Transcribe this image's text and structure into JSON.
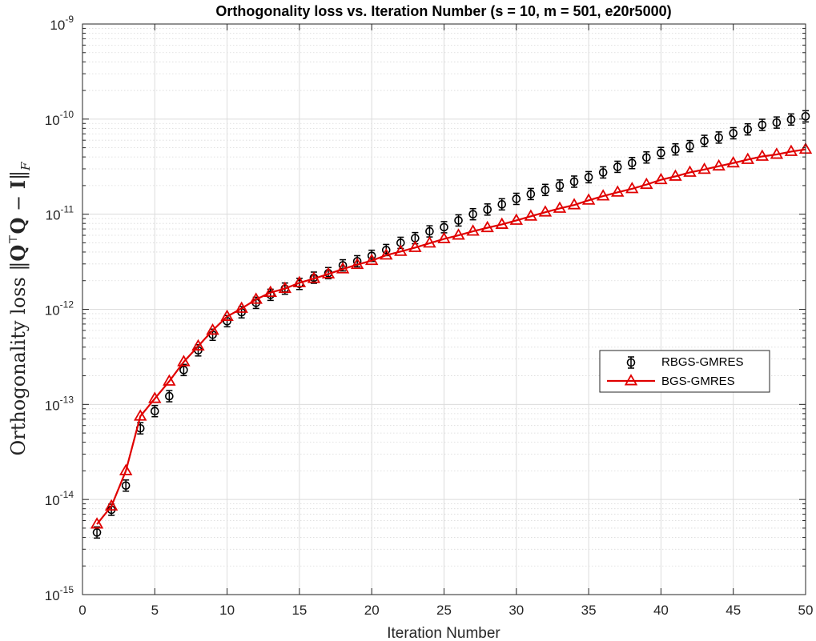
{
  "chart_data": {
    "type": "line",
    "title": "Orthogonality loss vs. Iteration Number (s = 10, m = 501, e20r5000)",
    "xlabel": "Iteration Number",
    "ylabel": "Orthogonality loss ‖QᵀQ − I‖F",
    "xlim": [
      0,
      50
    ],
    "ylim": [
      1e-15,
      1e-09
    ],
    "yscale": "log",
    "grid": true,
    "legend_position": "center-right",
    "x_ticks": [
      0,
      5,
      10,
      15,
      20,
      25,
      30,
      35,
      40,
      45,
      50
    ],
    "y_ticks": [
      {
        "base": "10",
        "exp": "-15",
        "value": 1e-15
      },
      {
        "base": "10",
        "exp": "-14",
        "value": 1e-14
      },
      {
        "base": "10",
        "exp": "-13",
        "value": 1e-13
      },
      {
        "base": "10",
        "exp": "-12",
        "value": 1e-12
      },
      {
        "base": "10",
        "exp": "-11",
        "value": 1e-11
      },
      {
        "base": "10",
        "exp": "-10",
        "value": 1e-10
      },
      {
        "base": "10",
        "exp": "-9",
        "value": 1e-09
      }
    ],
    "x": [
      1,
      2,
      3,
      4,
      5,
      6,
      7,
      8,
      9,
      10,
      11,
      12,
      13,
      14,
      15,
      16,
      17,
      18,
      19,
      20,
      21,
      22,
      23,
      24,
      25,
      26,
      27,
      28,
      29,
      30,
      31,
      32,
      33,
      34,
      35,
      36,
      37,
      38,
      39,
      40,
      41,
      42,
      43,
      44,
      45,
      46,
      47,
      48,
      49,
      50
    ],
    "series": [
      {
        "name": "RBGS-GMRES",
        "color": "#000000",
        "marker": "circle-errorbar",
        "line": false,
        "values": [
          4.5e-15,
          7.8e-15,
          1.4e-14,
          5.6e-14,
          8.5e-14,
          1.22e-13,
          2.3e-13,
          3.7e-13,
          5.4e-13,
          7.5e-13,
          9.3e-13,
          1.17e-12,
          1.42e-12,
          1.65e-12,
          1.85e-12,
          2.15e-12,
          2.4e-12,
          2.9e-12,
          3.2e-12,
          3.65e-12,
          4.2e-12,
          5e-12,
          5.6e-12,
          6.6e-12,
          7.3e-12,
          8.6e-12,
          1e-11,
          1.12e-11,
          1.27e-11,
          1.45e-11,
          1.63e-11,
          1.8e-11,
          2e-11,
          2.2e-11,
          2.45e-11,
          2.75e-11,
          3.15e-11,
          3.45e-11,
          3.95e-11,
          4.4e-11,
          4.8e-11,
          5.2e-11,
          5.9e-11,
          6.4e-11,
          7.1e-11,
          7.8e-11,
          8.7e-11,
          9.2e-11,
          9.9e-11,
          1.07e-10
        ]
      },
      {
        "name": "BGS-GMRES",
        "color": "#e00000",
        "marker": "triangle",
        "line": true,
        "values": [
          5.5e-15,
          8.5e-15,
          2e-14,
          7.5e-14,
          1.15e-13,
          1.75e-13,
          2.8e-13,
          4.1e-13,
          6e-13,
          8.4e-13,
          1.02e-12,
          1.27e-12,
          1.5e-12,
          1.65e-12,
          1.9e-12,
          2.1e-12,
          2.35e-12,
          2.65e-12,
          2.95e-12,
          3.25e-12,
          3.7e-12,
          4.05e-12,
          4.45e-12,
          4.95e-12,
          5.5e-12,
          6e-12,
          6.6e-12,
          7.2e-12,
          7.8e-12,
          8.6e-12,
          9.5e-12,
          1.05e-11,
          1.15e-11,
          1.25e-11,
          1.4e-11,
          1.55e-11,
          1.7e-11,
          1.85e-11,
          2.05e-11,
          2.3e-11,
          2.5e-11,
          2.75e-11,
          2.95e-11,
          3.2e-11,
          3.45e-11,
          3.75e-11,
          4.05e-11,
          4.25e-11,
          4.55e-11,
          4.8e-11
        ]
      }
    ]
  }
}
